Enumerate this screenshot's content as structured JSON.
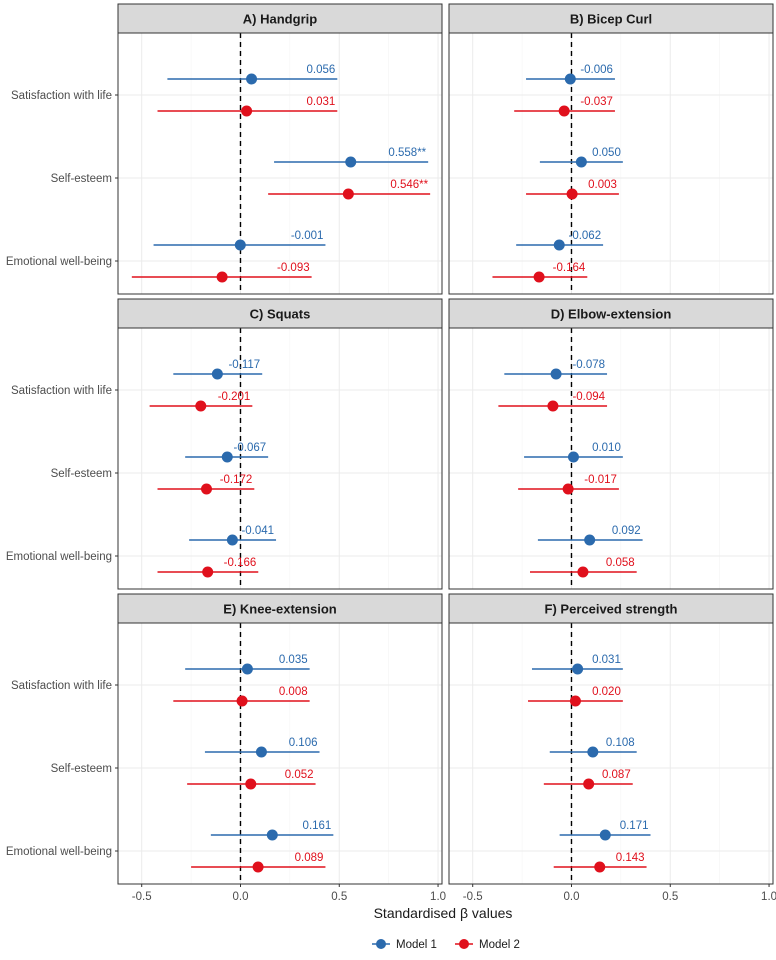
{
  "colors": {
    "model1": "#2b6aad",
    "model2": "#e0101c"
  },
  "legend": [
    {
      "name": "Model 1",
      "color": "#2b6aad"
    },
    {
      "name": "Model 2",
      "color": "#e0101c"
    }
  ],
  "chart_data": {
    "type": "scatter",
    "subtype": "forest-plot-with-confidence-intervals",
    "xlabel": "Standardised β values",
    "xlim": [
      -0.62,
      1.02
    ],
    "xticks": [
      "-0.5",
      "0.0",
      "0.5",
      "1.0"
    ],
    "xtick_values": [
      -0.5,
      0,
      0.5,
      1.0
    ],
    "reference_line": 0,
    "grid": true,
    "legend_position": "bottom",
    "outcomes": [
      "Satisfaction with life",
      "Self-esteem",
      "Emotional well-being"
    ],
    "panels": [
      {
        "title": "A) Handgrip",
        "rows": [
          {
            "outcome": "Satisfaction with life",
            "m1": {
              "est": 0.056,
              "lo": -0.37,
              "hi": 0.49,
              "label": "0.056"
            },
            "m2": {
              "est": 0.031,
              "lo": -0.42,
              "hi": 0.49,
              "label": "0.031"
            }
          },
          {
            "outcome": "Self-esteem",
            "m1": {
              "est": 0.558,
              "lo": 0.17,
              "hi": 0.95,
              "label": "0.558**"
            },
            "m2": {
              "est": 0.546,
              "lo": 0.14,
              "hi": 0.96,
              "label": "0.546**"
            }
          },
          {
            "outcome": "Emotional well-being",
            "m1": {
              "est": -0.001,
              "lo": -0.44,
              "hi": 0.43,
              "label": "-0.001"
            },
            "m2": {
              "est": -0.093,
              "lo": -0.55,
              "hi": 0.36,
              "label": "-0.093"
            }
          }
        ]
      },
      {
        "title": "B) Bicep Curl",
        "rows": [
          {
            "outcome": "Satisfaction with life",
            "m1": {
              "est": -0.006,
              "lo": -0.23,
              "hi": 0.22,
              "label": "-0.006"
            },
            "m2": {
              "est": -0.037,
              "lo": -0.29,
              "hi": 0.22,
              "label": "-0.037"
            }
          },
          {
            "outcome": "Self-esteem",
            "m1": {
              "est": 0.05,
              "lo": -0.16,
              "hi": 0.26,
              "label": "0.050"
            },
            "m2": {
              "est": 0.003,
              "lo": -0.23,
              "hi": 0.24,
              "label": "0.003"
            }
          },
          {
            "outcome": "Emotional well-being",
            "m1": {
              "est": -0.062,
              "lo": -0.28,
              "hi": 0.16,
              "label": "-0.062"
            },
            "m2": {
              "est": -0.164,
              "lo": -0.4,
              "hi": 0.08,
              "label": "-0.164"
            }
          }
        ]
      },
      {
        "title": "C) Squats",
        "rows": [
          {
            "outcome": "Satisfaction with life",
            "m1": {
              "est": -0.117,
              "lo": -0.34,
              "hi": 0.11,
              "label": "-0.117"
            },
            "m2": {
              "est": -0.201,
              "lo": -0.46,
              "hi": 0.06,
              "label": "-0.201"
            }
          },
          {
            "outcome": "Self-esteem",
            "m1": {
              "est": -0.067,
              "lo": -0.28,
              "hi": 0.14,
              "label": "-0.067"
            },
            "m2": {
              "est": -0.172,
              "lo": -0.42,
              "hi": 0.07,
              "label": "-0.172"
            }
          },
          {
            "outcome": "Emotional well-being",
            "m1": {
              "est": -0.041,
              "lo": -0.26,
              "hi": 0.18,
              "label": "-0.041"
            },
            "m2": {
              "est": -0.166,
              "lo": -0.42,
              "hi": 0.09,
              "label": "-0.166"
            }
          }
        ]
      },
      {
        "title": "D) Elbow-extension",
        "rows": [
          {
            "outcome": "Satisfaction with life",
            "m1": {
              "est": -0.078,
              "lo": -0.34,
              "hi": 0.18,
              "label": "-0.078"
            },
            "m2": {
              "est": -0.094,
              "lo": -0.37,
              "hi": 0.18,
              "label": "-0.094"
            }
          },
          {
            "outcome": "Self-esteem",
            "m1": {
              "est": 0.01,
              "lo": -0.24,
              "hi": 0.26,
              "label": "0.010"
            },
            "m2": {
              "est": -0.017,
              "lo": -0.27,
              "hi": 0.24,
              "label": "-0.017"
            }
          },
          {
            "outcome": "Emotional well-being",
            "m1": {
              "est": 0.092,
              "lo": -0.17,
              "hi": 0.36,
              "label": "0.092"
            },
            "m2": {
              "est": 0.058,
              "lo": -0.21,
              "hi": 0.33,
              "label": "0.058"
            }
          }
        ]
      },
      {
        "title": "E) Knee-extension",
        "rows": [
          {
            "outcome": "Satisfaction with life",
            "m1": {
              "est": 0.035,
              "lo": -0.28,
              "hi": 0.35,
              "label": "0.035"
            },
            "m2": {
              "est": 0.008,
              "lo": -0.34,
              "hi": 0.35,
              "label": "0.008"
            }
          },
          {
            "outcome": "Self-esteem",
            "m1": {
              "est": 0.106,
              "lo": -0.18,
              "hi": 0.4,
              "label": "0.106"
            },
            "m2": {
              "est": 0.052,
              "lo": -0.27,
              "hi": 0.38,
              "label": "0.052"
            }
          },
          {
            "outcome": "Emotional well-being",
            "m1": {
              "est": 0.161,
              "lo": -0.15,
              "hi": 0.47,
              "label": "0.161"
            },
            "m2": {
              "est": 0.089,
              "lo": -0.25,
              "hi": 0.43,
              "label": "0.089"
            }
          }
        ]
      },
      {
        "title": "F) Perceived strength",
        "rows": [
          {
            "outcome": "Satisfaction with life",
            "m1": {
              "est": 0.031,
              "lo": -0.2,
              "hi": 0.26,
              "label": "0.031"
            },
            "m2": {
              "est": 0.02,
              "lo": -0.22,
              "hi": 0.26,
              "label": "0.020"
            }
          },
          {
            "outcome": "Self-esteem",
            "m1": {
              "est": 0.108,
              "lo": -0.11,
              "hi": 0.33,
              "label": "0.108"
            },
            "m2": {
              "est": 0.087,
              "lo": -0.14,
              "hi": 0.31,
              "label": "0.087"
            }
          },
          {
            "outcome": "Emotional well-being",
            "m1": {
              "est": 0.171,
              "lo": -0.06,
              "hi": 0.4,
              "label": "0.171"
            },
            "m2": {
              "est": 0.143,
              "lo": -0.09,
              "hi": 0.38,
              "label": "0.143"
            }
          }
        ]
      }
    ]
  }
}
